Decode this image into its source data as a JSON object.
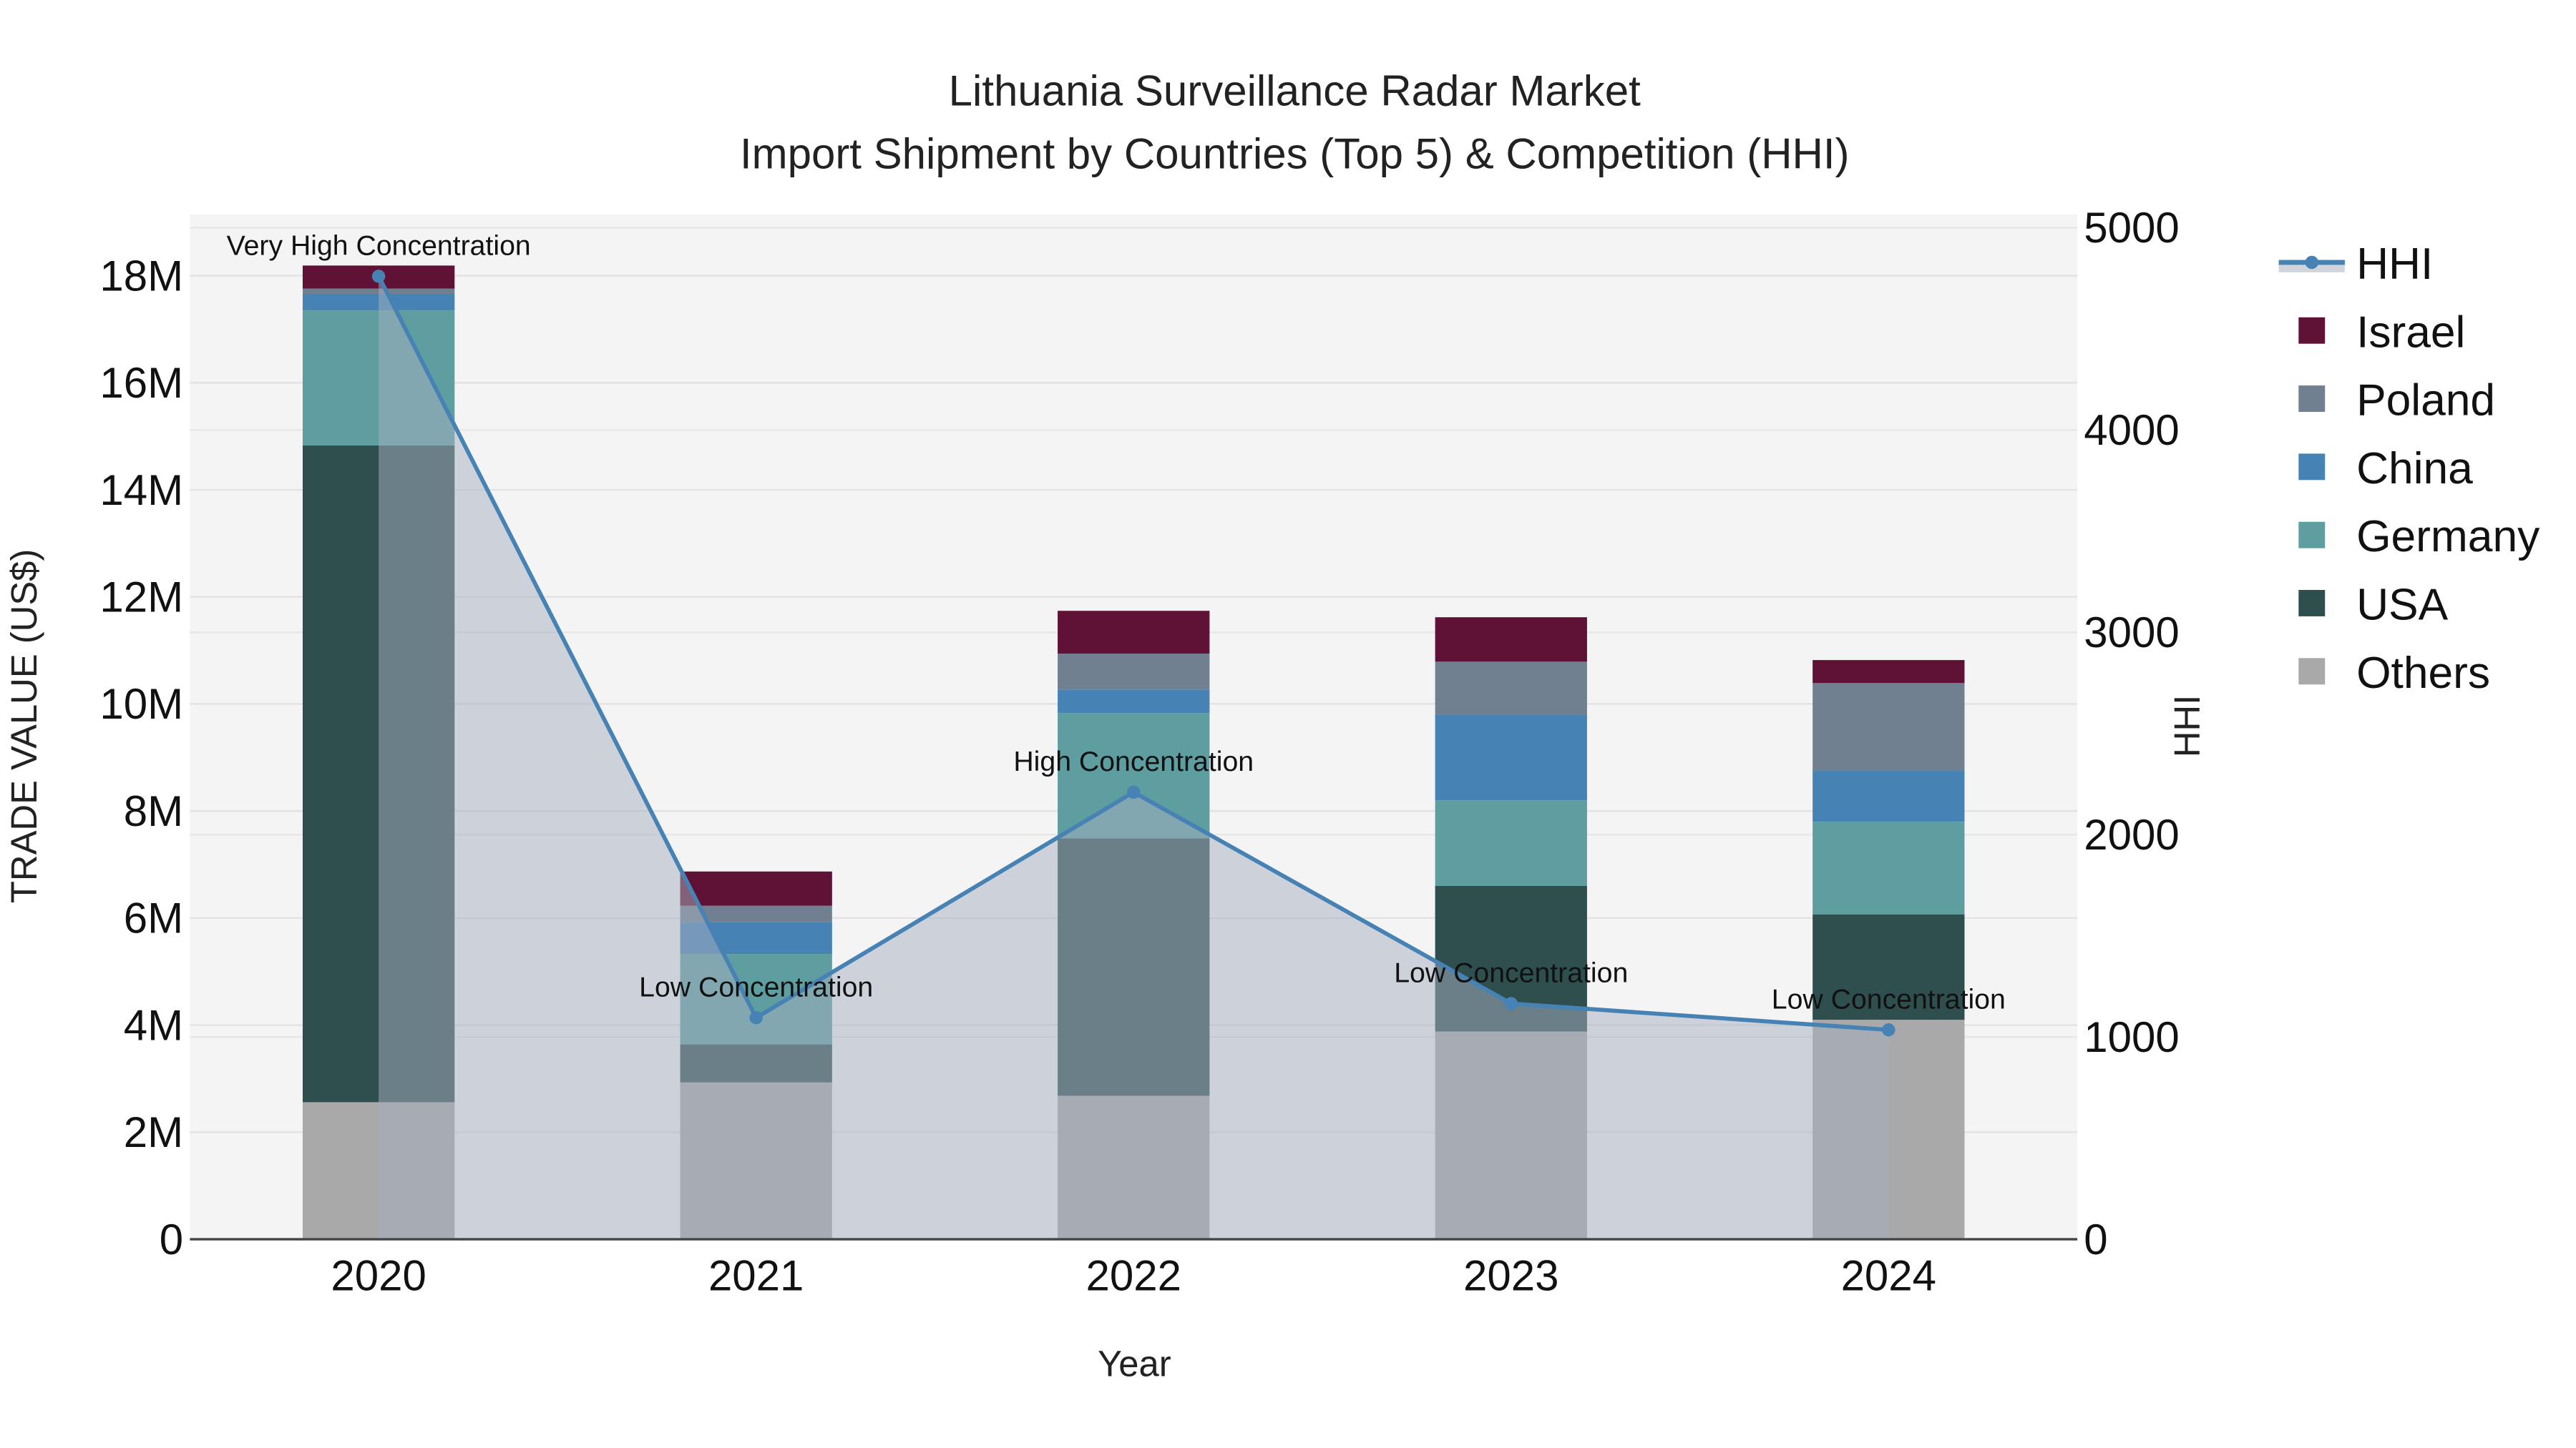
{
  "chart_data": {
    "type": "bar",
    "stacked": true,
    "title": "Lithuania Surveillance Radar Market",
    "subtitle": "Import Shipment by Countries (Top 5) & Competition (HHI)",
    "xlabel": "Year",
    "ylabel": "TRADE VALUE (US$)",
    "y2label": "HHI",
    "categories": [
      "2020",
      "2021",
      "2022",
      "2023",
      "2024"
    ],
    "ylim": [
      0,
      19000000
    ],
    "y_ticks": [
      0,
      2000000,
      4000000,
      6000000,
      8000000,
      10000000,
      12000000,
      14000000,
      16000000,
      18000000
    ],
    "y_tick_labels": [
      "0",
      "2M",
      "4M",
      "6M",
      "8M",
      "10M",
      "12M",
      "14M",
      "16M",
      "18M"
    ],
    "y2lim": [
      0,
      5050
    ],
    "y2_ticks": [
      0,
      1000,
      2000,
      3000,
      4000,
      5000
    ],
    "y2_tick_labels": [
      "0",
      "1000",
      "2000",
      "3000",
      "4000",
      "5000"
    ],
    "series": [
      {
        "name": "Others",
        "color": "#a9a9a9",
        "values": [
          2560000,
          2930000,
          2680000,
          3880000,
          4100000
        ]
      },
      {
        "name": "USA",
        "color": "#2f4f4f",
        "values": [
          12270000,
          710000,
          4810000,
          2720000,
          1970000
        ]
      },
      {
        "name": "Germany",
        "color": "#5f9ea0",
        "values": [
          2520000,
          1690000,
          2340000,
          1600000,
          1730000
        ]
      },
      {
        "name": "China",
        "color": "#4682b4",
        "values": [
          310000,
          590000,
          440000,
          1600000,
          950000
        ]
      },
      {
        "name": "Poland",
        "color": "#708090",
        "values": [
          100000,
          310000,
          670000,
          990000,
          1640000
        ]
      },
      {
        "name": "Israel",
        "color": "#601236",
        "values": [
          430000,
          640000,
          800000,
          830000,
          430000
        ]
      }
    ],
    "hhi": {
      "name": "HHI",
      "color": "#4682b4",
      "values": [
        4760,
        1095,
        2210,
        1165,
        1035
      ],
      "annotations": [
        "Very High Concentration",
        "Low Concentration",
        "High Concentration",
        "Low Concentration",
        "Low Concentration"
      ]
    },
    "legend_order": [
      "HHI",
      "Israel",
      "Poland",
      "China",
      "Germany",
      "USA",
      "Others"
    ],
    "legend_position": "right",
    "grid": true
  }
}
